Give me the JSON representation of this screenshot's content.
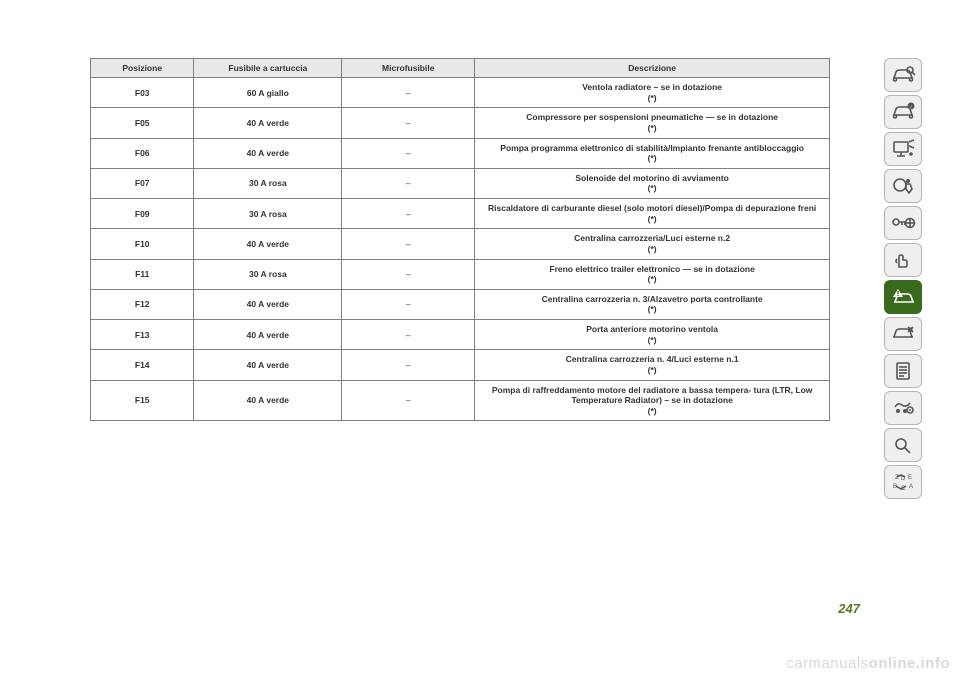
{
  "table": {
    "headers": [
      "Posizione",
      "Fusibile a cartuccia",
      "Microfusibile",
      "Descrizione"
    ],
    "col_widths_pct": [
      14,
      20,
      18,
      48
    ],
    "header_bg": "#e8e8e8",
    "border_color": "#808080",
    "font_size_pt": 6.5,
    "text_color": "#333333",
    "rows": [
      {
        "pos": "F03",
        "cartuccia": "60 A giallo",
        "micro": "–",
        "desc": "Ventola radiatore – se in dotazione",
        "note": "(*)"
      },
      {
        "pos": "F05",
        "cartuccia": "40 A verde",
        "micro": "–",
        "desc": "Compressore per sospensioni pneumatiche — se in dotazione",
        "note": "(*)"
      },
      {
        "pos": "F06",
        "cartuccia": "40 A verde",
        "micro": "–",
        "desc": "Pompa programma elettronico di stabilità/Impianto frenante antibloccaggio",
        "note": "(*)"
      },
      {
        "pos": "F07",
        "cartuccia": "30 A rosa",
        "micro": "–",
        "desc": "Solenoide del motorino di avviamento",
        "note": "(*)"
      },
      {
        "pos": "F09",
        "cartuccia": "30 A rosa",
        "micro": "–",
        "desc": "Riscaldatore di carburante diesel (solo motori diesel)/Pompa di depurazione freni",
        "note": "(*)"
      },
      {
        "pos": "F10",
        "cartuccia": "40 A verde",
        "micro": "–",
        "desc": "Centralina carrozzeria/Luci esterne n.2",
        "note": "(*)"
      },
      {
        "pos": "F11",
        "cartuccia": "30 A rosa",
        "micro": "–",
        "desc": "Freno elettrico trailer elettronico — se in dotazione",
        "note": "(*)"
      },
      {
        "pos": "F12",
        "cartuccia": "40 A verde",
        "micro": "–",
        "desc": "Centralina carrozzeria n. 3/Alzavetro porta controllante",
        "note": "(*)"
      },
      {
        "pos": "F13",
        "cartuccia": "40 A verde",
        "micro": "–",
        "desc": "Porta anteriore motorino ventola",
        "note": "(*)"
      },
      {
        "pos": "F14",
        "cartuccia": "40 A verde",
        "micro": "–",
        "desc": "Centralina carrozzeria n. 4/Luci esterne n.1",
        "note": "(*)"
      },
      {
        "pos": "F15",
        "cartuccia": "40 A verde",
        "micro": "–",
        "desc": "Pompa di raffreddamento motore del radiatore a bassa tempera- tura (LTR, Low Temperature Radiator) – se in dotazione",
        "note": "(*)"
      }
    ]
  },
  "page_number": "247",
  "page_number_color": "#5a7a1e",
  "sidebar": {
    "active_index": 6,
    "active_bg": "#3a6b1c",
    "inactive_bg": "#efefef",
    "border_color": "#b5b5b5",
    "icon_color": "#555555",
    "icon_color_active": "#ffffff",
    "items": [
      {
        "name": "car-search-icon"
      },
      {
        "name": "car-info-icon"
      },
      {
        "name": "display-icon"
      },
      {
        "name": "airbag-icon"
      },
      {
        "name": "key-steering-icon"
      },
      {
        "name": "hand-icon"
      },
      {
        "name": "warning-car-icon"
      },
      {
        "name": "car-service-icon"
      },
      {
        "name": "document-icon"
      },
      {
        "name": "media-nav-icon"
      },
      {
        "name": "magnifier-icon"
      },
      {
        "name": "alphabet-icon"
      }
    ]
  },
  "watermark": {
    "prefix": "carmanuals",
    "suffix": "online.info",
    "color": "#d9d9d9"
  }
}
